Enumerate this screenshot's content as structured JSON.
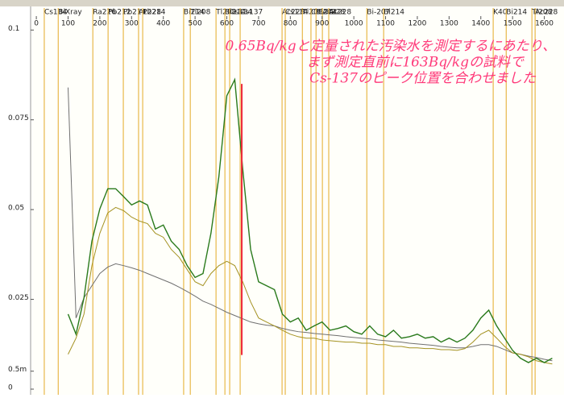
{
  "chart_data": {
    "type": "line",
    "annotation": [
      "0.65Bq/kgと定量された汚染水を測定するにあたり、",
      "まず測定直前に163Bq/kgの試料で",
      "Cs-137のピーク位置を合わせました"
    ],
    "annotation_color": "#ff3a7a",
    "xlim": [
      -18,
      1662
    ],
    "ylim": [
      0,
      0.105
    ],
    "xticks": [
      0,
      100,
      200,
      300,
      400,
      500,
      600,
      700,
      800,
      900,
      1000,
      1100,
      1200,
      1300,
      1400,
      1500,
      1600
    ],
    "yticks": [
      0,
      {
        "value": 0.005,
        "label": "0.5m"
      },
      0.025,
      0.05,
      0.075,
      0.1
    ],
    "x": [
      100,
      125,
      150,
      175,
      200,
      225,
      250,
      275,
      300,
      325,
      350,
      375,
      400,
      425,
      450,
      475,
      500,
      525,
      550,
      575,
      600,
      625,
      650,
      675,
      700,
      725,
      750,
      775,
      800,
      825,
      850,
      875,
      900,
      925,
      950,
      975,
      1000,
      1025,
      1050,
      1075,
      1100,
      1125,
      1150,
      1175,
      1200,
      1225,
      1250,
      1275,
      1300,
      1325,
      1350,
      1375,
      1400,
      1425,
      1450,
      1475,
      1500,
      1525,
      1550,
      1575,
      1600,
      1625
    ],
    "series": [
      {
        "color": "#707070",
        "values": [
          0.084,
          0.0198,
          0.0254,
          0.0288,
          0.0322,
          0.034,
          0.0349,
          0.0344,
          0.0338,
          0.0331,
          0.0322,
          0.0313,
          0.0304,
          0.0295,
          0.0284,
          0.0272,
          0.0259,
          0.0245,
          0.0236,
          0.0225,
          0.0214,
          0.0205,
          0.0196,
          0.0187,
          0.0182,
          0.0178,
          0.0176,
          0.0169,
          0.0164,
          0.016,
          0.0158,
          0.0155,
          0.0153,
          0.0151,
          0.0149,
          0.0146,
          0.0144,
          0.0142,
          0.014,
          0.0137,
          0.0135,
          0.0133,
          0.0131,
          0.0128,
          0.0126,
          0.0124,
          0.0122,
          0.0119,
          0.0117,
          0.0115,
          0.0115,
          0.0119,
          0.0124,
          0.0124,
          0.0119,
          0.011,
          0.0101,
          0.0097,
          0.0092,
          0.0088,
          0.0083,
          0.0079
        ]
      },
      {
        "color": "#a49222",
        "values": [
          0.0097,
          0.0142,
          0.0209,
          0.0344,
          0.0434,
          0.0491,
          0.0506,
          0.0497,
          0.0479,
          0.0468,
          0.0461,
          0.0434,
          0.0423,
          0.0389,
          0.0367,
          0.0333,
          0.0299,
          0.0288,
          0.0322,
          0.0344,
          0.0356,
          0.0344,
          0.0299,
          0.0243,
          0.0198,
          0.0187,
          0.0176,
          0.0164,
          0.0153,
          0.0146,
          0.0142,
          0.0142,
          0.0137,
          0.0135,
          0.0133,
          0.0131,
          0.0131,
          0.0128,
          0.0128,
          0.0124,
          0.0124,
          0.0119,
          0.0119,
          0.0115,
          0.0115,
          0.0113,
          0.0113,
          0.011,
          0.011,
          0.0108,
          0.0113,
          0.0131,
          0.0153,
          0.0164,
          0.0142,
          0.0119,
          0.0101,
          0.0097,
          0.009,
          0.0079,
          0.0074,
          0.007
        ]
      },
      {
        "color": "#2a7a1c",
        "values": [
          0.0209,
          0.0153,
          0.0254,
          0.0412,
          0.0502,
          0.0558,
          0.0558,
          0.0536,
          0.0513,
          0.0524,
          0.0513,
          0.0446,
          0.0457,
          0.0412,
          0.0389,
          0.0344,
          0.0311,
          0.0322,
          0.0434,
          0.0592,
          0.0817,
          0.0862,
          0.0614,
          0.0389,
          0.0299,
          0.0288,
          0.0277,
          0.0209,
          0.0187,
          0.0198,
          0.0164,
          0.0176,
          0.0187,
          0.0164,
          0.0169,
          0.0176,
          0.016,
          0.0153,
          0.0176,
          0.0153,
          0.0146,
          0.0164,
          0.0142,
          0.0146,
          0.0153,
          0.0142,
          0.0146,
          0.0131,
          0.0142,
          0.0131,
          0.0142,
          0.0164,
          0.0198,
          0.022,
          0.0176,
          0.0142,
          0.0108,
          0.0086,
          0.0074,
          0.0086,
          0.0074,
          0.0086
        ]
      }
    ],
    "marker_color": "#e8b84a",
    "markers": [
      {
        "label": "Cs134",
        "x": 25
      },
      {
        "label": "BiXray",
        "x": 69
      },
      {
        "label": "Ra226",
        "x": 178
      },
      {
        "label": "Pb212",
        "x": 226
      },
      {
        "label": "Pb214",
        "x": 274
      },
      {
        "label": "Ac228",
        "x": 322
      },
      {
        "label": "Pb214",
        "x": 335
      },
      {
        "label": "Bi214",
        "x": 464
      },
      {
        "label": "Tl208",
        "x": 485
      },
      {
        "label": "Tl208",
        "x": 566
      },
      {
        "label": "Bi214",
        "x": 594
      },
      {
        "label": "Cs134",
        "x": 609
      },
      {
        "label": "Cs137",
        "x": 642
      },
      {
        "label": "Ac228",
        "x": 774
      },
      {
        "label": "Cs134",
        "x": 784
      },
      {
        "label": "Tl208",
        "x": 838
      },
      {
        "label": "Cs134",
        "x": 865
      },
      {
        "label": "Bi214",
        "x": 881
      },
      {
        "label": "Ac228",
        "x": 901
      },
      {
        "label": "Ac228",
        "x": 921
      },
      {
        "label": "Bi-207",
        "x": 1041
      },
      {
        "label": "Bi214",
        "x": 1094
      },
      {
        "label": "K40",
        "x": 1439
      },
      {
        "label": "Bi214",
        "x": 1480
      },
      {
        "label": "Tl208",
        "x": 1561
      },
      {
        "label": "Ac228",
        "x": 1571
      }
    ],
    "cursor": {
      "x": 647,
      "y": [
        0.0095,
        0.085
      ],
      "color": "#ee2a3a"
    }
  }
}
